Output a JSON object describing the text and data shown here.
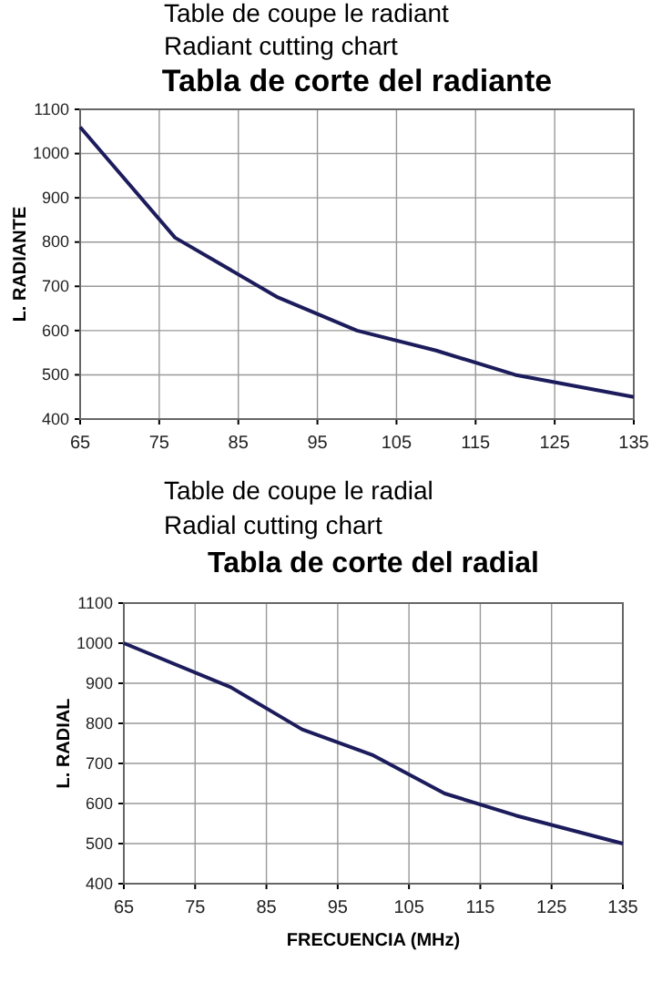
{
  "chart_data": [
    {
      "type": "line",
      "title": "Tabla de corte del radiante",
      "annotations": [
        "Table de coupe le radiant",
        "Radiant cutting chart"
      ],
      "ylabel": "L. RADIANTE",
      "x": [
        65,
        77,
        90,
        100,
        110,
        120,
        135
      ],
      "series": [
        {
          "color": "#1c1c5c",
          "values": [
            1060,
            810,
            675,
            600,
            555,
            500,
            450
          ]
        }
      ],
      "xlim": [
        65,
        135
      ],
      "xticks": [
        65,
        75,
        85,
        95,
        105,
        115,
        125,
        135
      ],
      "ylim": [
        400,
        1100
      ],
      "yticks": [
        400,
        500,
        600,
        700,
        800,
        900,
        1000,
        1100
      ],
      "grid": true,
      "marker": "none",
      "line_style": "solid"
    },
    {
      "type": "line",
      "title": "Tabla de corte del radial",
      "annotations": [
        "Table de coupe le radial",
        "Radial cutting chart"
      ],
      "xlabel": "FRECUENCIA (MHz)",
      "ylabel": "L. RADIAL",
      "x": [
        65,
        80,
        90,
        100,
        110,
        120,
        135
      ],
      "series": [
        {
          "color": "#1c1c5c",
          "values": [
            1000,
            890,
            785,
            720,
            625,
            570,
            500
          ]
        }
      ],
      "xlim": [
        65,
        135
      ],
      "xticks": [
        65,
        75,
        85,
        95,
        105,
        115,
        125,
        135
      ],
      "ylim": [
        400,
        1100
      ],
      "yticks": [
        400,
        500,
        600,
        700,
        800,
        900,
        1000,
        1100
      ],
      "grid": true,
      "marker": "none",
      "line_style": "solid"
    }
  ]
}
